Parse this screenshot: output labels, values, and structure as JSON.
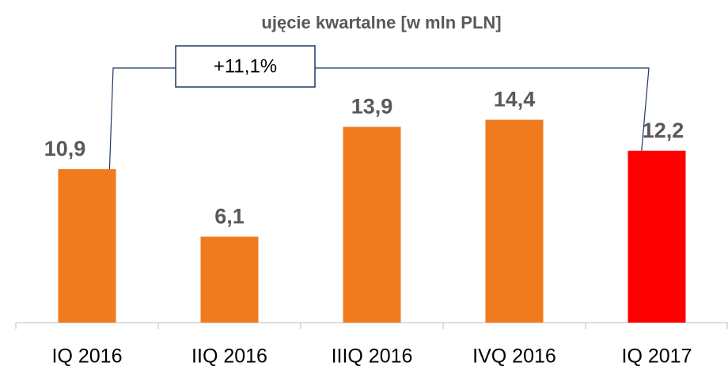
{
  "chart_data": {
    "type": "bar",
    "title": "ujęcie kwartalne  [w mln PLN]",
    "categories": [
      "IQ 2016",
      "IIQ 2016",
      "IIIQ 2016",
      "IVQ 2016",
      "IQ 2017"
    ],
    "values": [
      10.9,
      6.1,
      13.9,
      14.4,
      12.2
    ],
    "value_labels": [
      "10,9",
      "6,1",
      "13,9",
      "14,4",
      "12,2"
    ],
    "colors": [
      "#f07a1e",
      "#f07a1e",
      "#f07a1e",
      "#f07a1e",
      "#ff0000"
    ],
    "ylim": [
      0,
      16
    ],
    "annotation": "+11,1%"
  }
}
